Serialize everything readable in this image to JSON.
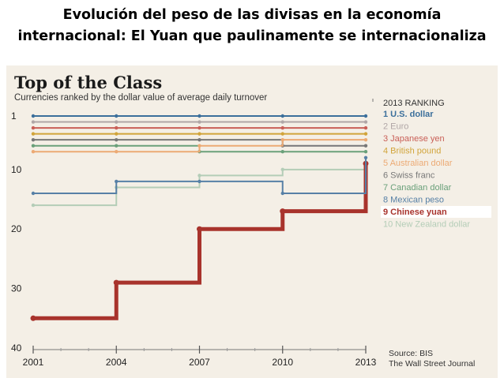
{
  "slide": {
    "title_line1": "Evolución del peso de las divisas en la economía",
    "title_line2": "internacional: El Yuan que paulinamente se internacionaliza"
  },
  "chart_data": {
    "type": "line",
    "title": "Top of the Class",
    "subtitle": "Currencies ranked by the dollar value of average daily turnover",
    "x": [
      2001,
      2004,
      2007,
      2010,
      2013
    ],
    "x_tick_labels": [
      "2001",
      "2004",
      "2007",
      "2010",
      "2013"
    ],
    "ylim": [
      40,
      1
    ],
    "y_ticks": [
      1,
      10,
      20,
      30,
      40
    ],
    "y_tick_labels": [
      "1",
      "10",
      "20",
      "30",
      "40"
    ],
    "y_inverted": true,
    "grid": false,
    "legend_title": "2013 RANKING",
    "legend_position": "right",
    "source_label": "Source: BIS",
    "source_publication": "The Wall Street Journal",
    "series": [
      {
        "name": "1 U.S. dollar",
        "color": "#3b6f9b",
        "values": [
          1,
          1,
          1,
          1,
          1
        ]
      },
      {
        "name": "2 Euro",
        "color": "#b0a6a6",
        "values": [
          2,
          2,
          2,
          2,
          2
        ]
      },
      {
        "name": "3 Japanese yen",
        "color": "#c95f57",
        "values": [
          3,
          3,
          3,
          3,
          3
        ]
      },
      {
        "name": "4 British pound",
        "color": "#d1a43a",
        "values": [
          4,
          4,
          4,
          4,
          4
        ]
      },
      {
        "name": "5 Australian dollar",
        "color": "#ecaa74",
        "values": [
          7,
          7,
          6,
          5,
          5
        ]
      },
      {
        "name": "6 Swiss franc",
        "color": "#777777",
        "values": [
          5,
          5,
          5,
          6,
          6
        ]
      },
      {
        "name": "7 Canadian dollar",
        "color": "#6aa07a",
        "values": [
          6,
          6,
          7,
          7,
          7
        ]
      },
      {
        "name": "8 Mexican peso",
        "color": "#5780a6",
        "values": [
          14,
          12,
          12,
          14,
          8
        ]
      },
      {
        "name": "9 Chinese yuan",
        "color": "#a8332c",
        "values": [
          35,
          29,
          20,
          17,
          9
        ]
      },
      {
        "name": "10 New Zealand dollar",
        "color": "#b4cdb7",
        "values": [
          16,
          13,
          11,
          10,
          10
        ]
      }
    ]
  }
}
